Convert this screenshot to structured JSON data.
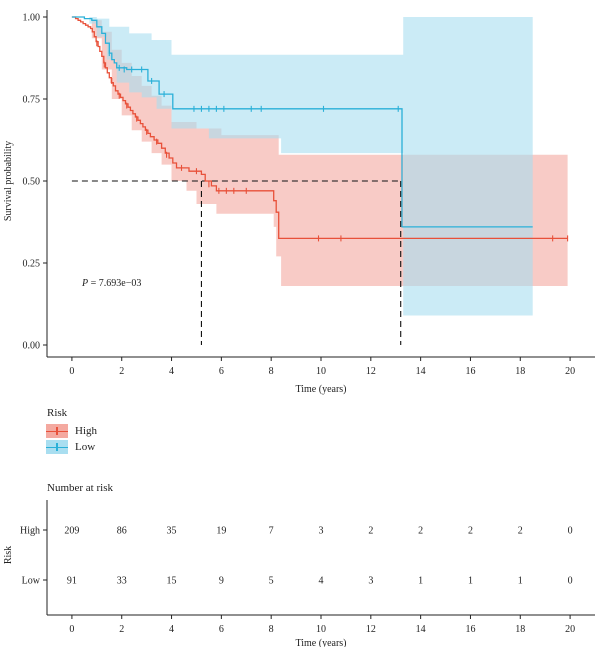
{
  "chart_data": {
    "type": "line",
    "subtype": "kaplan-meier",
    "ylabel": "Survival probability",
    "xlabel": "Time (years)",
    "xlim": [
      -1,
      21
    ],
    "ylim": [
      0,
      1
    ],
    "x_ticks": [
      0,
      2,
      4,
      6,
      8,
      10,
      12,
      14,
      16,
      18,
      20
    ],
    "y_ticks": [
      "0.00",
      "0.25",
      "0.50",
      "0.75",
      "1.00"
    ],
    "y_tick_values": [
      0,
      0.25,
      0.5,
      0.75,
      1.0
    ],
    "pvalue_prefix": "P",
    "pvalue_text": " = 7.693e−03",
    "median_line": {
      "y": 0.5,
      "x_high": 5.2,
      "x_low": 13.2
    },
    "series": [
      {
        "name": "High",
        "color": "#e8513a",
        "band_color": "#f4a9a0",
        "steps": [
          [
            0,
            1.0
          ],
          [
            0.15,
            0.995
          ],
          [
            0.25,
            0.99
          ],
          [
            0.35,
            0.985
          ],
          [
            0.45,
            0.98
          ],
          [
            0.55,
            0.975
          ],
          [
            0.65,
            0.97
          ],
          [
            0.75,
            0.965
          ],
          [
            0.82,
            0.955
          ],
          [
            0.9,
            0.94
          ],
          [
            0.97,
            0.925
          ],
          [
            1.05,
            0.91
          ],
          [
            1.12,
            0.895
          ],
          [
            1.2,
            0.88
          ],
          [
            1.28,
            0.86
          ],
          [
            1.35,
            0.845
          ],
          [
            1.42,
            0.83
          ],
          [
            1.5,
            0.815
          ],
          [
            1.58,
            0.8
          ],
          [
            1.66,
            0.79
          ],
          [
            1.75,
            0.775
          ],
          [
            1.85,
            0.765
          ],
          [
            1.95,
            0.755
          ],
          [
            2.05,
            0.745
          ],
          [
            2.15,
            0.735
          ],
          [
            2.25,
            0.725
          ],
          [
            2.35,
            0.715
          ],
          [
            2.45,
            0.705
          ],
          [
            2.55,
            0.695
          ],
          [
            2.65,
            0.685
          ],
          [
            2.75,
            0.675
          ],
          [
            2.85,
            0.665
          ],
          [
            2.95,
            0.655
          ],
          [
            3.05,
            0.645
          ],
          [
            3.15,
            0.635
          ],
          [
            3.3,
            0.625
          ],
          [
            3.45,
            0.615
          ],
          [
            3.6,
            0.6
          ],
          [
            3.75,
            0.585
          ],
          [
            3.9,
            0.57
          ],
          [
            4.05,
            0.555
          ],
          [
            4.2,
            0.54
          ],
          [
            4.7,
            0.53
          ],
          [
            5.2,
            0.52
          ],
          [
            5.35,
            0.5
          ],
          [
            5.6,
            0.485
          ],
          [
            5.8,
            0.47
          ],
          [
            8.1,
            0.44
          ],
          [
            8.2,
            0.405
          ],
          [
            8.3,
            0.325
          ],
          [
            19.9,
            0.325
          ]
        ],
        "upper": [
          [
            0,
            1.0
          ],
          [
            0.8,
            0.99
          ],
          [
            1.2,
            0.955
          ],
          [
            1.6,
            0.9
          ],
          [
            2.0,
            0.86
          ],
          [
            2.4,
            0.82
          ],
          [
            2.8,
            0.79
          ],
          [
            3.2,
            0.76
          ],
          [
            3.6,
            0.73
          ],
          [
            4.0,
            0.68
          ],
          [
            5.0,
            0.66
          ],
          [
            6.0,
            0.64
          ],
          [
            8.3,
            0.58
          ],
          [
            19.9,
            0.58
          ]
        ],
        "lower": [
          [
            0,
            1.0
          ],
          [
            0.8,
            0.935
          ],
          [
            1.2,
            0.84
          ],
          [
            1.6,
            0.75
          ],
          [
            2.0,
            0.7
          ],
          [
            2.4,
            0.655
          ],
          [
            2.8,
            0.62
          ],
          [
            3.2,
            0.585
          ],
          [
            3.6,
            0.55
          ],
          [
            4.0,
            0.5
          ],
          [
            4.6,
            0.47
          ],
          [
            5.0,
            0.43
          ],
          [
            5.8,
            0.4
          ],
          [
            8.1,
            0.36
          ],
          [
            8.2,
            0.27
          ],
          [
            8.4,
            0.18
          ],
          [
            19.9,
            0.18
          ]
        ],
        "censor_points": [
          [
            1.0,
            0.92
          ],
          [
            1.3,
            0.855
          ],
          [
            1.6,
            0.805
          ],
          [
            1.9,
            0.76
          ],
          [
            2.2,
            0.73
          ],
          [
            2.6,
            0.69
          ],
          [
            3.0,
            0.65
          ],
          [
            3.4,
            0.62
          ],
          [
            3.8,
            0.58
          ],
          [
            4.4,
            0.54
          ],
          [
            5.0,
            0.53
          ],
          [
            5.5,
            0.49
          ],
          [
            5.9,
            0.47
          ],
          [
            6.2,
            0.47
          ],
          [
            6.5,
            0.47
          ],
          [
            7.0,
            0.47
          ],
          [
            9.9,
            0.325
          ],
          [
            10.8,
            0.325
          ],
          [
            19.3,
            0.325
          ],
          [
            19.9,
            0.325
          ]
        ]
      },
      {
        "name": "Low",
        "color": "#2ab0d8",
        "band_color": "#a9def0",
        "steps": [
          [
            0,
            1.0
          ],
          [
            0.5,
            0.995
          ],
          [
            0.8,
            0.99
          ],
          [
            1.0,
            0.97
          ],
          [
            1.2,
            0.95
          ],
          [
            1.35,
            0.92
          ],
          [
            1.5,
            0.89
          ],
          [
            1.6,
            0.87
          ],
          [
            1.7,
            0.86
          ],
          [
            1.8,
            0.845
          ],
          [
            2.2,
            0.84
          ],
          [
            2.6,
            0.84
          ],
          [
            3.05,
            0.805
          ],
          [
            3.35,
            0.805
          ],
          [
            3.5,
            0.765
          ],
          [
            3.9,
            0.765
          ],
          [
            4.05,
            0.72
          ],
          [
            13.2,
            0.72
          ],
          [
            13.25,
            0.36
          ],
          [
            18.5,
            0.36
          ]
        ],
        "upper": [
          [
            0,
            1.0
          ],
          [
            1.0,
            0.995
          ],
          [
            1.5,
            0.97
          ],
          [
            2.3,
            0.95
          ],
          [
            3.2,
            0.93
          ],
          [
            4.0,
            0.885
          ],
          [
            13.3,
            0.885
          ],
          [
            13.3,
            1.0
          ],
          [
            18.5,
            1.0
          ]
        ],
        "lower": [
          [
            0,
            1.0
          ],
          [
            0.7,
            0.98
          ],
          [
            1.0,
            0.94
          ],
          [
            1.4,
            0.87
          ],
          [
            1.8,
            0.8
          ],
          [
            2.3,
            0.77
          ],
          [
            2.8,
            0.755
          ],
          [
            3.4,
            0.72
          ],
          [
            4.0,
            0.66
          ],
          [
            5.5,
            0.63
          ],
          [
            8.4,
            0.585
          ],
          [
            13.2,
            0.585
          ],
          [
            13.3,
            0.09
          ],
          [
            18.5,
            0.09
          ]
        ],
        "censor_points": [
          [
            1.5,
            0.89
          ],
          [
            1.9,
            0.845
          ],
          [
            2.1,
            0.84
          ],
          [
            2.4,
            0.84
          ],
          [
            2.8,
            0.84
          ],
          [
            3.2,
            0.805
          ],
          [
            3.7,
            0.765
          ],
          [
            4.9,
            0.72
          ],
          [
            5.2,
            0.72
          ],
          [
            5.5,
            0.72
          ],
          [
            5.8,
            0.72
          ],
          [
            6.1,
            0.72
          ],
          [
            7.2,
            0.72
          ],
          [
            7.6,
            0.72
          ],
          [
            10.1,
            0.72
          ],
          [
            13.1,
            0.72
          ]
        ]
      }
    ]
  },
  "legend": {
    "title": "Risk",
    "items": [
      {
        "label": "High",
        "color": "#e8513a",
        "band": "#f4a9a0"
      },
      {
        "label": "Low",
        "color": "#2ab0d8",
        "band": "#a9def0"
      }
    ]
  },
  "risk_table": {
    "title": "Number at risk",
    "ylabel": "Risk",
    "xlabel": "Time (years)",
    "times": [
      0,
      2,
      4,
      6,
      8,
      10,
      12,
      14,
      16,
      18,
      20
    ],
    "rows": [
      {
        "label": "High",
        "values": [
          209,
          86,
          35,
          19,
          7,
          3,
          2,
          2,
          2,
          2,
          0
        ]
      },
      {
        "label": "Low",
        "values": [
          91,
          33,
          15,
          9,
          5,
          4,
          3,
          1,
          1,
          1,
          0
        ]
      }
    ]
  }
}
